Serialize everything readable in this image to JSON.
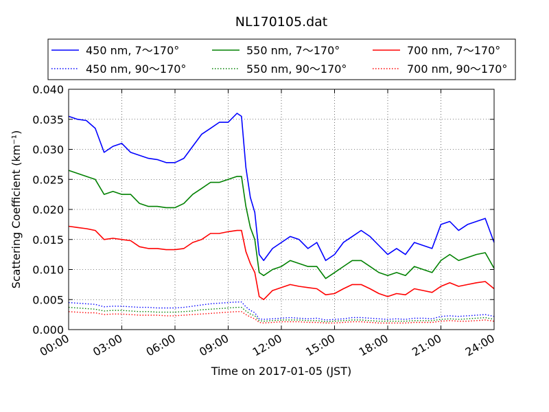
{
  "chart_data": {
    "type": "line",
    "title": "NL170105.dat",
    "xlabel": "Time on 2017-01-05 (JST)",
    "ylabel": "Scattering Coefficient (km⁻¹)",
    "xlim": [
      0,
      24
    ],
    "ylim": [
      0.0,
      0.04
    ],
    "x_tick_labels": [
      "00:00",
      "03:00",
      "06:00",
      "09:00",
      "12:00",
      "15:00",
      "18:00",
      "21:00",
      "24:00"
    ],
    "y_tick_labels": [
      "0.000",
      "0.005",
      "0.010",
      "0.015",
      "0.020",
      "0.025",
      "0.030",
      "0.035",
      "0.040"
    ],
    "grid": true,
    "legend_position": "top",
    "x_hours": [
      0,
      0.5,
      1,
      1.5,
      2,
      2.5,
      3,
      3.5,
      4,
      4.5,
      5,
      5.5,
      6,
      6.5,
      7,
      7.5,
      8,
      8.5,
      9,
      9.5,
      9.75,
      10,
      10.25,
      10.5,
      10.75,
      11,
      11.5,
      12,
      12.5,
      13,
      13.5,
      14,
      14.5,
      15,
      15.5,
      16,
      16.5,
      17,
      17.5,
      18,
      18.5,
      19,
      19.5,
      20,
      20.5,
      21,
      21.5,
      22,
      22.5,
      23,
      23.5,
      24
    ],
    "series": [
      {
        "name": "450 nm, 7～170°",
        "color": "#0000ff",
        "style": "solid",
        "values": [
          0.0355,
          0.035,
          0.0348,
          0.0335,
          0.0295,
          0.0305,
          0.031,
          0.0295,
          0.029,
          0.0285,
          0.0283,
          0.0278,
          0.0278,
          0.0285,
          0.0305,
          0.0325,
          0.0335,
          0.0345,
          0.0345,
          0.036,
          0.0355,
          0.027,
          0.022,
          0.0195,
          0.0125,
          0.0115,
          0.0135,
          0.0145,
          0.0155,
          0.015,
          0.0135,
          0.0145,
          0.0115,
          0.0125,
          0.0145,
          0.0155,
          0.0165,
          0.0155,
          0.014,
          0.0125,
          0.0135,
          0.0125,
          0.0145,
          0.014,
          0.0135,
          0.0175,
          0.018,
          0.0165,
          0.0175,
          0.018,
          0.0185,
          0.0145
        ]
      },
      {
        "name": "550 nm, 7～170°",
        "color": "#008000",
        "style": "solid",
        "values": [
          0.0265,
          0.026,
          0.0255,
          0.025,
          0.0225,
          0.023,
          0.0225,
          0.0225,
          0.021,
          0.0205,
          0.0205,
          0.0203,
          0.0203,
          0.021,
          0.0225,
          0.0235,
          0.0245,
          0.0245,
          0.025,
          0.0255,
          0.0255,
          0.0205,
          0.017,
          0.015,
          0.0095,
          0.009,
          0.01,
          0.0105,
          0.0115,
          0.011,
          0.0105,
          0.0105,
          0.0085,
          0.0095,
          0.0105,
          0.0115,
          0.0115,
          0.0105,
          0.0095,
          0.009,
          0.0095,
          0.009,
          0.0105,
          0.01,
          0.0095,
          0.0115,
          0.0125,
          0.0115,
          0.012,
          0.0125,
          0.0128,
          0.0102
        ]
      },
      {
        "name": "700 nm, 7～170°",
        "color": "#ff0000",
        "style": "solid",
        "values": [
          0.0172,
          0.017,
          0.0168,
          0.0165,
          0.015,
          0.0152,
          0.015,
          0.0148,
          0.0138,
          0.0135,
          0.0135,
          0.0133,
          0.0133,
          0.0135,
          0.0145,
          0.015,
          0.016,
          0.016,
          0.0163,
          0.0165,
          0.0165,
          0.013,
          0.011,
          0.0095,
          0.0055,
          0.005,
          0.0065,
          0.007,
          0.0075,
          0.0072,
          0.007,
          0.0068,
          0.0058,
          0.006,
          0.0068,
          0.0075,
          0.0075,
          0.0068,
          0.006,
          0.0055,
          0.006,
          0.0058,
          0.0068,
          0.0065,
          0.0062,
          0.0072,
          0.0078,
          0.0072,
          0.0075,
          0.0078,
          0.008,
          0.0068
        ]
      },
      {
        "name": "450 nm, 90～170°",
        "color": "#0000ff",
        "style": "dotted",
        "values": [
          0.0045,
          0.0044,
          0.0043,
          0.0042,
          0.0038,
          0.0039,
          0.0039,
          0.0038,
          0.0037,
          0.0037,
          0.0036,
          0.0036,
          0.0036,
          0.0037,
          0.0039,
          0.0041,
          0.0043,
          0.0044,
          0.0045,
          0.0046,
          0.0046,
          0.0038,
          0.0032,
          0.0028,
          0.0018,
          0.0017,
          0.0018,
          0.0019,
          0.002,
          0.0019,
          0.0018,
          0.0019,
          0.0016,
          0.0017,
          0.0018,
          0.002,
          0.002,
          0.0019,
          0.0018,
          0.0017,
          0.0018,
          0.0017,
          0.0019,
          0.0019,
          0.0018,
          0.0022,
          0.0023,
          0.0022,
          0.0023,
          0.0024,
          0.0025,
          0.0022
        ]
      },
      {
        "name": "550 nm, 90～170°",
        "color": "#008000",
        "style": "dotted",
        "values": [
          0.0037,
          0.0036,
          0.0035,
          0.0034,
          0.0031,
          0.0032,
          0.0032,
          0.0031,
          0.003,
          0.003,
          0.0029,
          0.0029,
          0.0029,
          0.003,
          0.0031,
          0.0033,
          0.0034,
          0.0035,
          0.0036,
          0.0037,
          0.0037,
          0.0031,
          0.0026,
          0.0023,
          0.0015,
          0.0014,
          0.0015,
          0.0016,
          0.0016,
          0.0016,
          0.0015,
          0.0015,
          0.0013,
          0.0014,
          0.0015,
          0.0016,
          0.0016,
          0.0015,
          0.0014,
          0.0014,
          0.0014,
          0.0014,
          0.0015,
          0.0015,
          0.0015,
          0.0017,
          0.0018,
          0.0017,
          0.0018,
          0.0019,
          0.002,
          0.0017
        ]
      },
      {
        "name": "700 nm, 90～170°",
        "color": "#ff0000",
        "style": "dotted",
        "values": [
          0.003,
          0.0029,
          0.0028,
          0.0028,
          0.0025,
          0.0026,
          0.0026,
          0.0025,
          0.0024,
          0.0024,
          0.0024,
          0.0023,
          0.0023,
          0.0024,
          0.0025,
          0.0026,
          0.0027,
          0.0028,
          0.0029,
          0.003,
          0.003,
          0.0025,
          0.0021,
          0.0018,
          0.0012,
          0.0011,
          0.0012,
          0.0013,
          0.0013,
          0.0013,
          0.0012,
          0.0012,
          0.0011,
          0.0011,
          0.0012,
          0.0013,
          0.0013,
          0.0012,
          0.0011,
          0.0011,
          0.0011,
          0.0011,
          0.0012,
          0.0012,
          0.0012,
          0.0014,
          0.0015,
          0.0014,
          0.0014,
          0.0015,
          0.0016,
          0.0014
        ]
      }
    ]
  }
}
